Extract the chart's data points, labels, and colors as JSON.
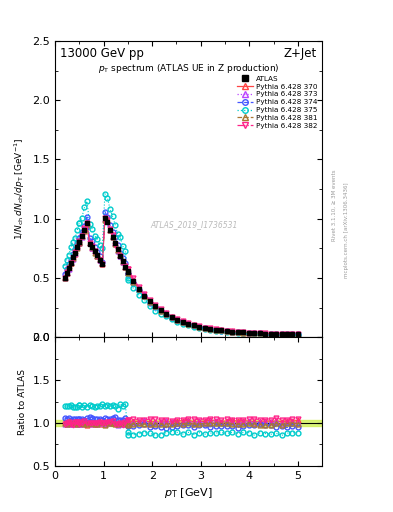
{
  "title_left": "13000 GeV pp",
  "title_right": "Z+Jet",
  "plot_title": "p_T spectrum (ATLAS UE in Z production)",
  "ylabel_main": "1/N_{ch} dN_{ch}/dp_T [GeV]",
  "ylabel_ratio": "Ratio to ATLAS",
  "xlabel": "p_T [GeV]",
  "xlim": [
    0,
    5.5
  ],
  "ylim_main": [
    0,
    2.5
  ],
  "ylim_ratio": [
    0.5,
    2.0
  ],
  "watermark": "ATLAS_2019_I1736531",
  "right_label": "Rivet 3.1.10, ≥ 3M events",
  "right_label2": "mcplots.cern.ch [arXiv:1306.3436]",
  "colors": [
    "#ff4444",
    "#bb44ff",
    "#4455ff",
    "#00cccc",
    "#aa7733",
    "#ff2288"
  ],
  "markers": [
    "^",
    "^",
    "o",
    "o",
    "^",
    "v"
  ],
  "linestyles": [
    "-",
    ":",
    "--",
    ":",
    "--",
    "-."
  ],
  "labels": [
    "Pythia 6.428 370",
    "Pythia 6.428 373",
    "Pythia 6.428 374",
    "Pythia 6.428 375",
    "Pythia 6.428 381",
    "Pythia 6.428 382"
  ],
  "background_color": "#ffffff",
  "ratio_band_color": "#ccee44"
}
